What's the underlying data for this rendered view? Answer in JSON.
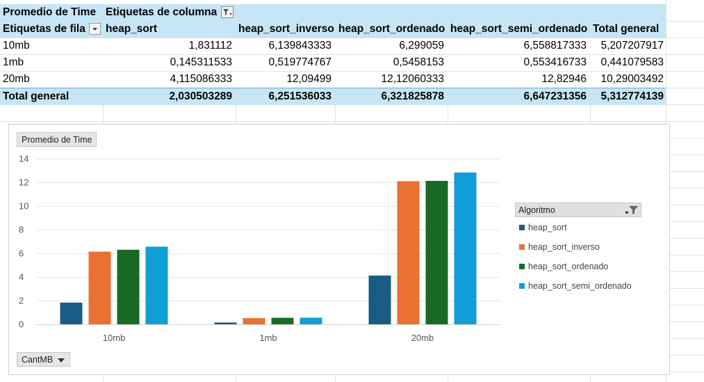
{
  "pivot": {
    "corner_label": "Promedio de Time",
    "column_labels_caption": "Etiquetas de columna",
    "row_labels_caption": "Etiquetas de fila",
    "columns": [
      "heap_sort",
      "heap_sort_inverso",
      "heap_sort_ordenado",
      "heap_sort_semi_ordenado",
      "Total general"
    ],
    "rows": [
      {
        "label": "10mb",
        "values": [
          "1,831112",
          "6,139843333",
          "6,299059",
          "6,558817333",
          "5,207207917"
        ]
      },
      {
        "label": "1mb",
        "values": [
          "0,145311533",
          "0,519774767",
          "0,5458153",
          "0,553416733",
          "0,441079583"
        ]
      },
      {
        "label": "20mb",
        "values": [
          "4,115086333",
          "12,09499",
          "12,12060333",
          "12,82946",
          "10,29003492"
        ]
      }
    ],
    "total": {
      "label": "Total general",
      "values": [
        "2,030503289",
        "6,251536033",
        "6,321825878",
        "6,647231356",
        "5,312774139"
      ]
    }
  },
  "chart_data": {
    "type": "bar",
    "value_field_button": "Promedio de Time",
    "axis_field_button": "CantMB",
    "legend_title": "Algoritmo",
    "categories": [
      "10mb",
      "1mb",
      "20mb"
    ],
    "ylim": [
      0,
      14
    ],
    "yticks": [
      0,
      2,
      4,
      6,
      8,
      10,
      12,
      14
    ],
    "grid": true,
    "legend_position": "right",
    "series": [
      {
        "name": "heap_sort",
        "color": "#1a5c84",
        "values": [
          1.831112,
          0.145311533,
          4.115086333
        ]
      },
      {
        "name": "heap_sort_inverso",
        "color": "#e97132",
        "values": [
          6.139843333,
          0.519774767,
          12.09499
        ]
      },
      {
        "name": "heap_sort_ordenado",
        "color": "#196b24",
        "values": [
          6.299059,
          0.5458153,
          12.12060333
        ]
      },
      {
        "name": "heap_sort_semi_ordenado",
        "color": "#0f9ed5",
        "values": [
          6.558817333,
          0.553416733,
          12.82946
        ]
      }
    ]
  }
}
